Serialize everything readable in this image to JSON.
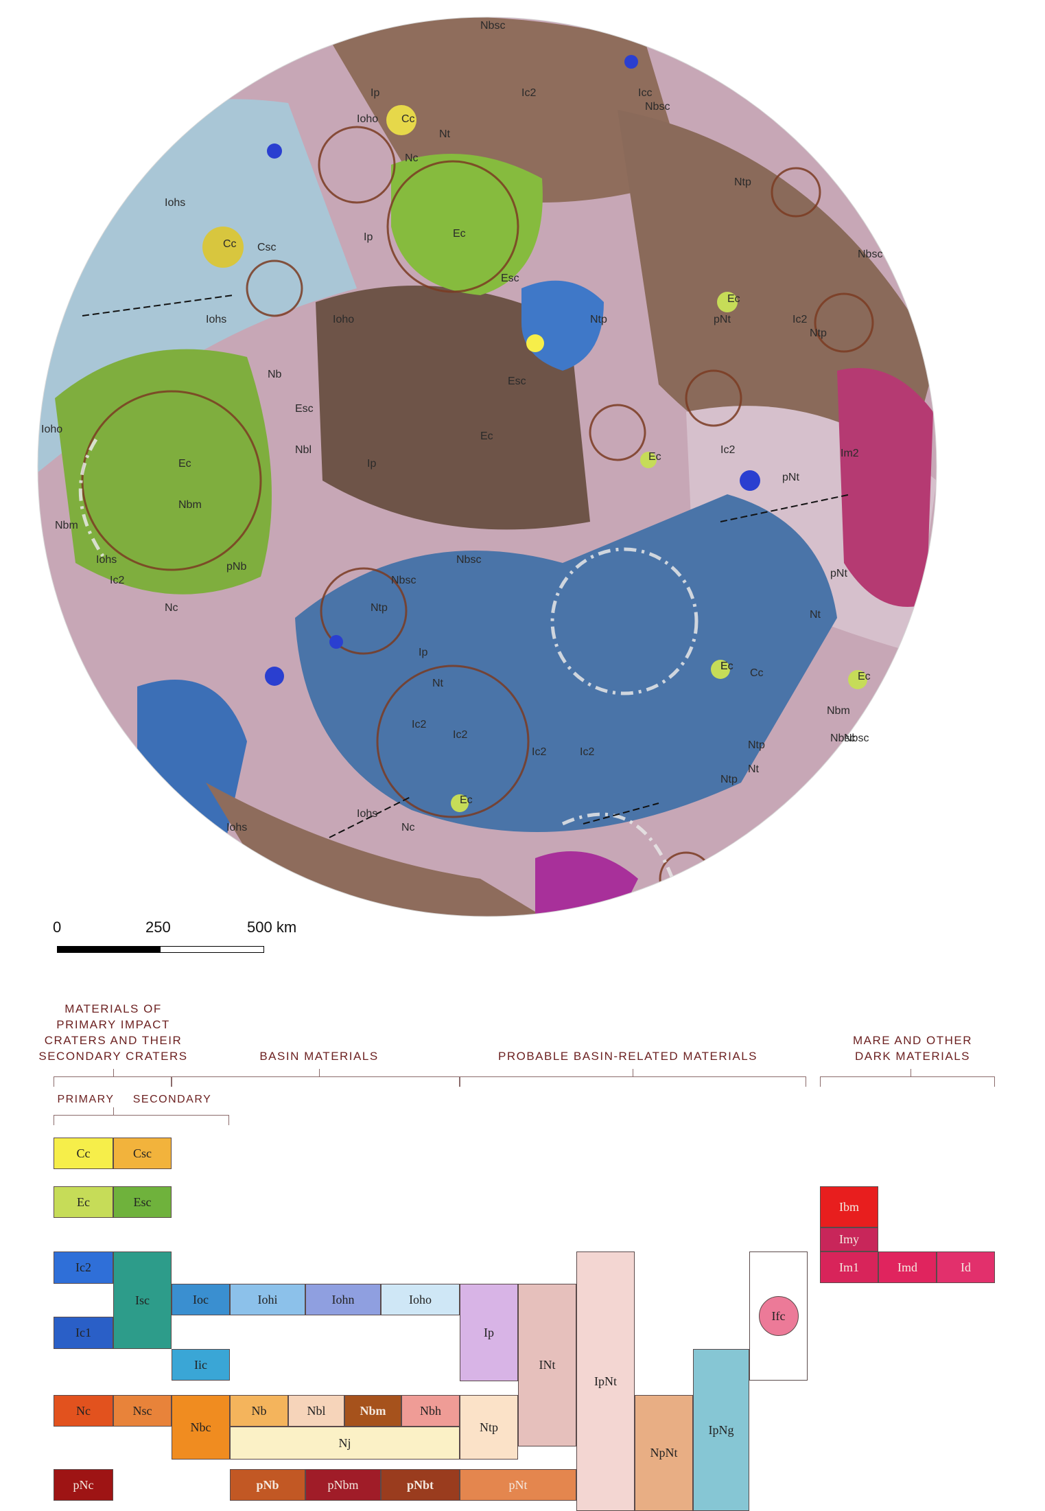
{
  "map": {
    "unit_labels": [
      "Nbsc",
      "Ip",
      "Ioho",
      "Cc",
      "Nc",
      "Nt",
      "Ic2",
      "Icc",
      "Nbsc",
      "Ntp",
      "Iohs",
      "Ip",
      "Ec",
      "Esc",
      "Cc",
      "Csc",
      "Iohs",
      "Ioho",
      "Ntp",
      "pNt",
      "Ec",
      "Ic2",
      "Ntp",
      "Nbsc",
      "Ec",
      "Ioho",
      "Nbl",
      "Esc",
      "Ip",
      "Ec",
      "Esc",
      "Nb",
      "Nbm",
      "Nbm",
      "Iohs",
      "Ic2",
      "Nc",
      "pNb",
      "Ntp",
      "Nbsc",
      "Nbsc",
      "Ec",
      "Cc",
      "Ec",
      "pNt",
      "Ic2",
      "Ec",
      "Ip",
      "Ic2",
      "Ic2",
      "Nt",
      "Ic2",
      "Ec",
      "Ec",
      "Ntp",
      "Nbm",
      "Nbsc",
      "Nt",
      "Nc",
      "Iohs",
      "Iohs",
      "Ic2",
      "Nbsc",
      "Ntp",
      "pNt",
      "Nt",
      "Im2"
    ]
  },
  "scale": {
    "ticks": [
      "0",
      "250",
      "500 km"
    ]
  },
  "legend": {
    "headings": {
      "primary_impact": "MATERIALS OF\nPRIMARY IMPACT\nCRATERS AND THEIR\nSECONDARY CRATERS",
      "basin": "BASIN MATERIALS",
      "probable_basin": "PROBABLE BASIN-RELATED MATERIALS",
      "mare": "MARE AND OTHER\nDARK MATERIALS",
      "primary": "PRIMARY",
      "secondary": "SECONDARY"
    },
    "units": {
      "Cc": "Cc",
      "Csc": "Csc",
      "Ec": "Ec",
      "Esc": "Esc",
      "Ic2": "Ic2",
      "Isc": "Isc",
      "Ic1": "Ic1",
      "Ioc": "Ioc",
      "Iic": "Iic",
      "Iohi": "Iohi",
      "Iohn": "Iohn",
      "Ioho": "Ioho",
      "Ip": "Ip",
      "INt": "INt",
      "IpNt": "IpNt",
      "IpNg": "IpNg",
      "Ifc": "Ifc",
      "Nc": "Nc",
      "Nsc": "Nsc",
      "Nbc": "Nbc",
      "Nb": "Nb",
      "Nbl": "Nbl",
      "Nbm": "Nbm",
      "Nbh": "Nbh",
      "Nj": "Nj",
      "Ntp": "Ntp",
      "NpNt": "NpNt",
      "pNc": "pNc",
      "pNb": "pNb",
      "pNbm": "pNbm",
      "pNbt": "pNbt",
      "pNt": "pNt",
      "Ibm": "Ibm",
      "Imy": "Imy",
      "Im1": "Im1",
      "Imd": "Imd",
      "Id": "Id"
    },
    "colors": {
      "Cc": "#f6ee4a",
      "Csc": "#f2b33c",
      "Ec": "#c6dc58",
      "Esc": "#6fb23c",
      "Ic2": "#2f6fd8",
      "Isc": "#2d9c8a",
      "Ic1": "#2a5fc7",
      "Ioc": "#3a8fd0",
      "Iic": "#3aa6d6",
      "Iohi": "#8cc1ea",
      "Iohn": "#8f9fe0",
      "Ioho": "#cfe7f6",
      "Ip": "#d8b4e6",
      "INt": "#e6c0bc",
      "IpNt": "#f3d6d2",
      "IpNg": "#86c6d4",
      "Ifc": "#ec7a98",
      "Nc": "#e2521e",
      "Nsc": "#e8833a",
      "Nbc": "#f08c20",
      "Nb": "#f4b45c",
      "Nbl": "#f6d4ba",
      "Nbm": "#a6521c",
      "Nbh": "#ef9c96",
      "Nj": "#fbf1c6",
      "Ntp": "#fbe2c8",
      "NpNt": "#e8ae84",
      "pNc": "#9e1414",
      "pNb": "#c25824",
      "pNbm": "#a01c28",
      "pNbt": "#9a3c1e",
      "pNt": "#e4864e",
      "Ibm": "#e81e1e",
      "Imy": "#c8265a",
      "Im1": "#d8245a",
      "Imd": "#e0245e",
      "Id": "#e2306c"
    }
  }
}
